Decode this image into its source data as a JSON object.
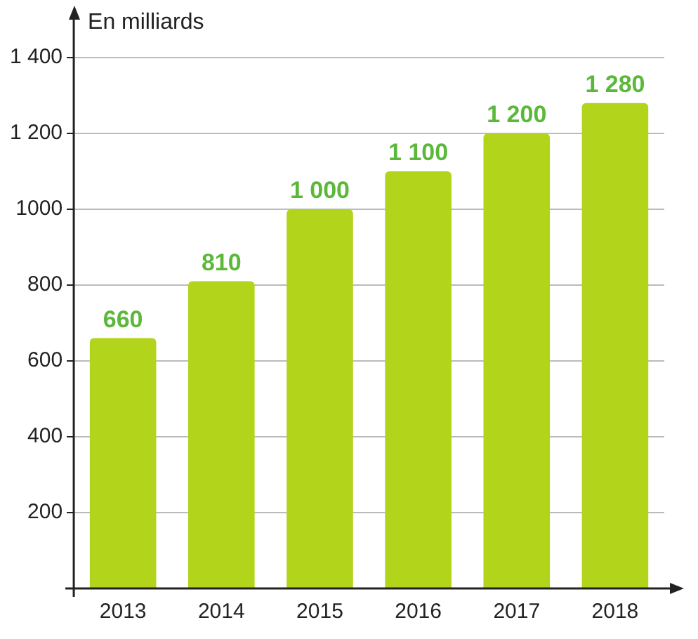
{
  "chart_data": {
    "type": "bar",
    "ylabel": "En milliards",
    "categories": [
      "2013",
      "2014",
      "2015",
      "2016",
      "2017",
      "2018"
    ],
    "values": [
      660,
      810,
      1000,
      1100,
      1200,
      1280
    ],
    "value_labels": [
      "660",
      "810",
      "1 000",
      "1 100",
      "1 200",
      "1 280"
    ],
    "color": "#b2d41a",
    "ylim": [
      0,
      1500
    ],
    "yticks": [
      {
        "value": 200,
        "label": "200"
      },
      {
        "value": 400,
        "label": "400"
      },
      {
        "value": 600,
        "label": "600"
      },
      {
        "value": 800,
        "label": "800"
      },
      {
        "value": 1000,
        "label": "1000"
      },
      {
        "value": 1200,
        "label": "1 200"
      },
      {
        "value": 1400,
        "label": "1 400"
      }
    ],
    "grid": "y"
  }
}
